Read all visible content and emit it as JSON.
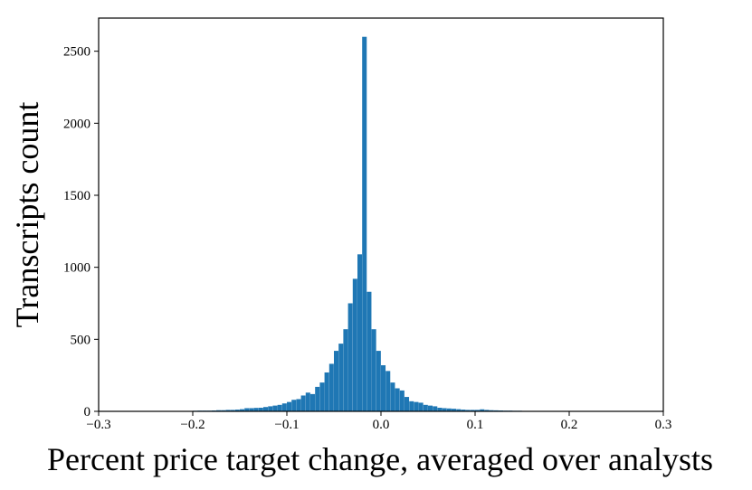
{
  "chart_data": {
    "type": "bar",
    "title": "",
    "xlabel": "Percent price target change, averaged over analysts",
    "ylabel": "Transcripts count",
    "xlim": [
      -0.3,
      0.3
    ],
    "ylim": [
      0,
      2730
    ],
    "xticks": [
      -0.3,
      -0.2,
      -0.1,
      0.0,
      0.1,
      0.2,
      0.3
    ],
    "xtick_labels": [
      "−0.3",
      "−0.2",
      "−0.1",
      "0.0",
      "0.1",
      "0.2",
      "0.3"
    ],
    "yticks": [
      0,
      500,
      1000,
      1500,
      2000,
      2500
    ],
    "ytick_labels": [
      "0",
      "500",
      "1000",
      "1500",
      "2000",
      "2500"
    ],
    "grid": false,
    "bar_color": "#1f77b4",
    "bin_width": 0.005,
    "bin_starts": [
      -0.215,
      -0.21,
      -0.205,
      -0.2,
      -0.195,
      -0.19,
      -0.185,
      -0.18,
      -0.175,
      -0.17,
      -0.165,
      -0.16,
      -0.155,
      -0.15,
      -0.145,
      -0.14,
      -0.135,
      -0.13,
      -0.125,
      -0.12,
      -0.115,
      -0.11,
      -0.105,
      -0.1,
      -0.095,
      -0.09,
      -0.085,
      -0.08,
      -0.075,
      -0.07,
      -0.065,
      -0.06,
      -0.055,
      -0.05,
      -0.045,
      -0.04,
      -0.035,
      -0.03,
      -0.025,
      -0.02,
      -0.015,
      -0.01,
      -0.005,
      0.0,
      0.005,
      0.01,
      0.015,
      0.02,
      0.025,
      0.03,
      0.035,
      0.04,
      0.045,
      0.05,
      0.055,
      0.06,
      0.065,
      0.07,
      0.075,
      0.08,
      0.085,
      0.09,
      0.095,
      0.1,
      0.105,
      0.11,
      0.115,
      0.12,
      0.125,
      0.13,
      0.135,
      0.14,
      0.145,
      0.15,
      0.155,
      0.16,
      0.165,
      0.17,
      0.175,
      0.18,
      0.185,
      0.19,
      0.195,
      0.2
    ],
    "values": [
      2,
      2,
      3,
      4,
      5,
      5,
      5,
      6,
      8,
      8,
      10,
      10,
      12,
      15,
      22,
      22,
      24,
      25,
      30,
      35,
      40,
      45,
      55,
      65,
      80,
      85,
      110,
      130,
      120,
      170,
      200,
      270,
      330,
      420,
      470,
      570,
      750,
      920,
      1090,
      2600,
      830,
      570,
      420,
      320,
      280,
      200,
      160,
      145,
      100,
      70,
      65,
      60,
      45,
      40,
      35,
      25,
      22,
      20,
      18,
      15,
      12,
      10,
      10,
      10,
      14,
      10,
      8,
      7,
      6,
      5,
      5,
      4,
      4,
      3,
      3,
      3,
      2,
      2,
      2,
      2,
      1,
      1,
      1,
      1
    ]
  }
}
